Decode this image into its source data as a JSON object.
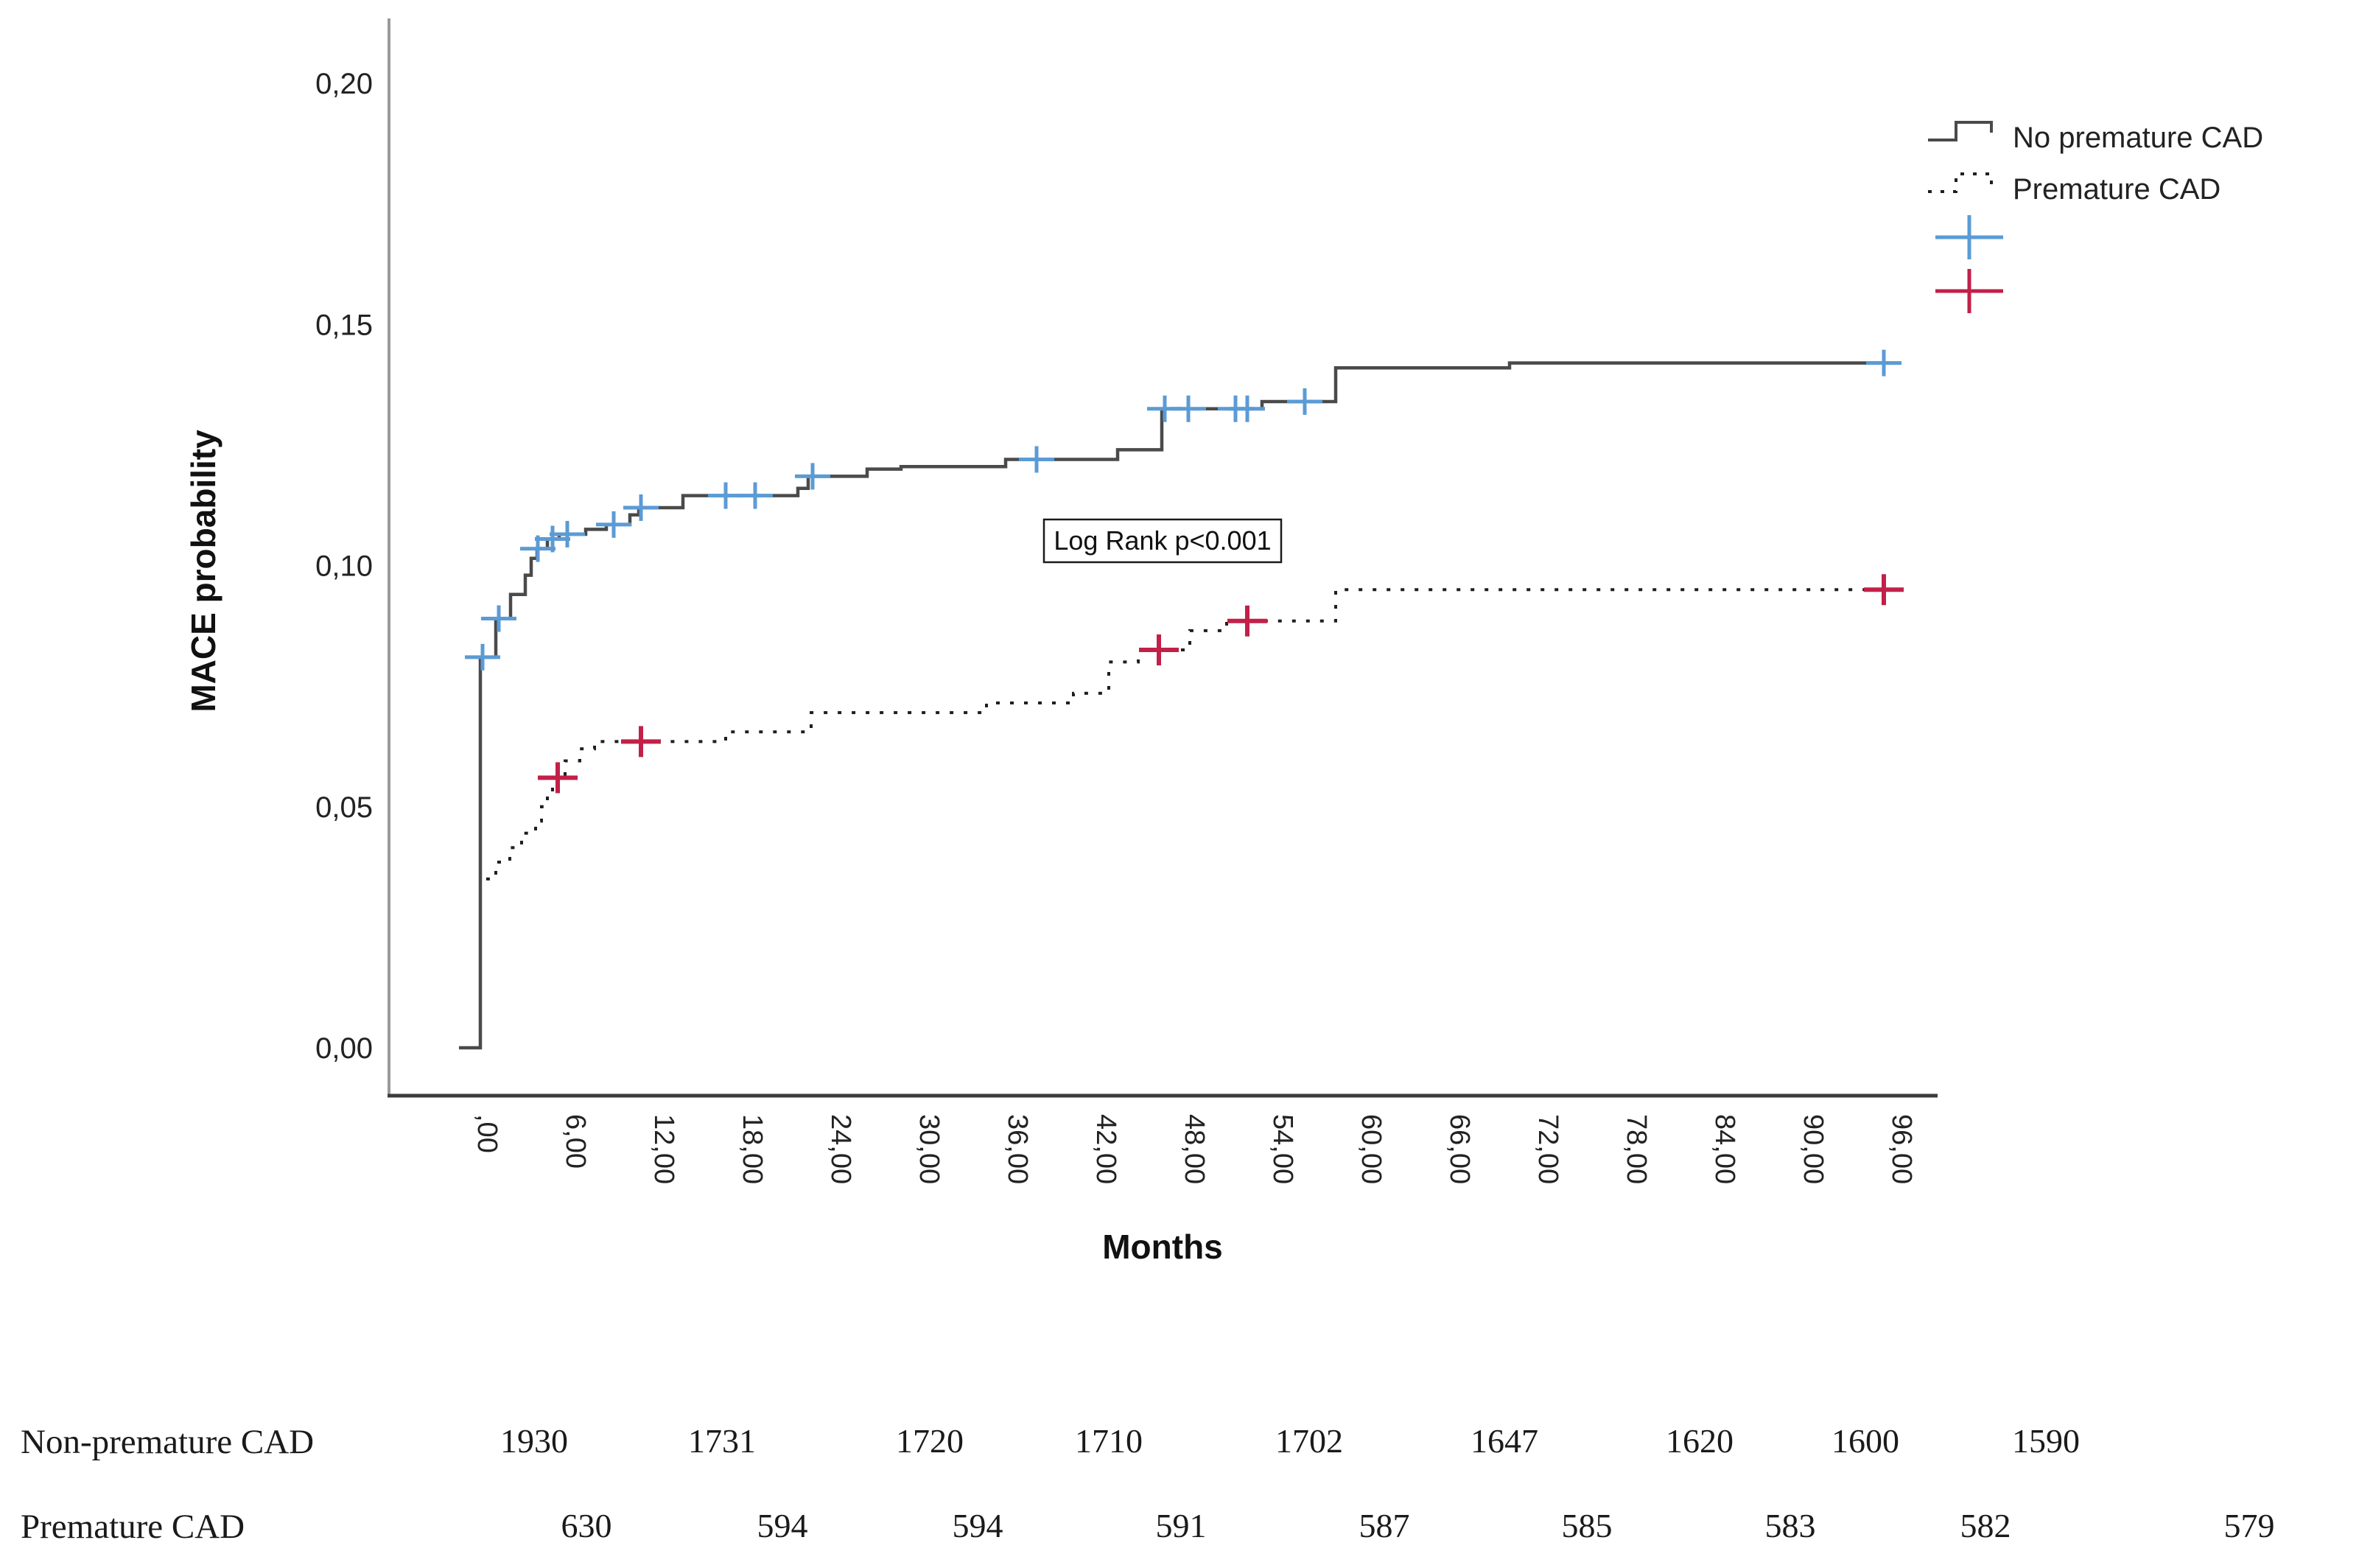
{
  "chart_data": {
    "type": "line",
    "subtype": "kaplan-meier-step",
    "title": "",
    "xlabel": "Months",
    "ylabel": "MACE probability",
    "annotation": "Log Rank p<0.001",
    "xlim": [
      -5,
      100
    ],
    "ylim": [
      0.0,
      0.21
    ],
    "grid": false,
    "legend_position": "top-right",
    "xtick_labels": [
      ",00",
      "6,00",
      "12,00",
      "18,00",
      "24,00",
      "30,00",
      "36,00",
      "42,00",
      "48,00",
      "54,00",
      "60,00",
      "66,00",
      "72,00",
      "78,00",
      "84,00",
      "90,00",
      "96,00"
    ],
    "xtick_months": [
      0,
      6,
      12,
      18,
      24,
      30,
      36,
      42,
      48,
      54,
      60,
      66,
      72,
      78,
      84,
      90,
      96
    ],
    "ytick_labels": [
      "0,00",
      "0,05",
      "0,10",
      "0,15",
      "0,20"
    ],
    "ytick_values": [
      0.0,
      0.05,
      0.1,
      0.15,
      0.2
    ],
    "colors": {
      "solid_line": "#4a4a4a",
      "dashed_line": "#1f1f1f",
      "censor_blue": "#5b9bd5",
      "censor_red": "#c22049",
      "axis_left": "#9a9a9a",
      "axis_bottom": "#3c3c3c"
    },
    "series": [
      {
        "name": "No premature CAD",
        "style": "solid",
        "start_month": -0.6,
        "end_month": 96.5,
        "steps": [
          [
            0.85,
            0.081
          ],
          [
            1.9,
            0.089
          ],
          [
            2.9,
            0.094
          ],
          [
            3.9,
            0.098
          ],
          [
            4.3,
            0.1015
          ],
          [
            4.7,
            0.1035
          ],
          [
            5.4,
            0.1055
          ],
          [
            6.2,
            0.1065
          ],
          [
            8.0,
            0.1075
          ],
          [
            9.4,
            0.1085
          ],
          [
            11.0,
            0.1105
          ],
          [
            11.6,
            0.112
          ],
          [
            14.6,
            0.1145
          ],
          [
            22.4,
            0.116
          ],
          [
            23.1,
            0.1185
          ],
          [
            27.1,
            0.12
          ],
          [
            29.4,
            0.1205
          ],
          [
            36.5,
            0.122
          ],
          [
            44.1,
            0.124
          ],
          [
            47.1,
            0.1325
          ],
          [
            53.9,
            0.134
          ],
          [
            58.9,
            0.141
          ],
          [
            70.7,
            0.142
          ]
        ],
        "censors": [
          [
            1.0,
            0.081
          ],
          [
            2.1,
            0.089
          ],
          [
            4.75,
            0.1035
          ],
          [
            5.75,
            0.1055
          ],
          [
            6.75,
            0.1065
          ],
          [
            9.9,
            0.1085
          ],
          [
            11.75,
            0.112
          ],
          [
            17.5,
            0.1145
          ],
          [
            19.5,
            0.1145
          ],
          [
            23.4,
            0.1185
          ],
          [
            38.6,
            0.122
          ],
          [
            47.3,
            0.1325
          ],
          [
            48.9,
            0.1325
          ],
          [
            52.1,
            0.1325
          ],
          [
            52.9,
            0.1325
          ],
          [
            56.8,
            0.134
          ],
          [
            96.1,
            0.142
          ]
        ]
      },
      {
        "name": "Premature CAD",
        "style": "dashed",
        "start_month": -0.6,
        "end_month": 96.2,
        "steps": [
          [
            0.85,
            0.035
          ],
          [
            1.9,
            0.0385
          ],
          [
            2.85,
            0.0415
          ],
          [
            3.65,
            0.0445
          ],
          [
            4.6,
            0.047
          ],
          [
            5.0,
            0.05
          ],
          [
            5.4,
            0.0525
          ],
          [
            5.75,
            0.056
          ],
          [
            6.6,
            0.0595
          ],
          [
            7.6,
            0.062
          ],
          [
            8.6,
            0.0635
          ],
          [
            17.5,
            0.0655
          ],
          [
            23.3,
            0.0695
          ],
          [
            35.2,
            0.0715
          ],
          [
            41.1,
            0.0735
          ],
          [
            43.5,
            0.08
          ],
          [
            45.5,
            0.0825
          ],
          [
            49.0,
            0.0865
          ],
          [
            51.5,
            0.0885
          ],
          [
            58.9,
            0.095
          ]
        ],
        "censors": [
          [
            6.1,
            0.056
          ],
          [
            11.75,
            0.0635
          ],
          [
            46.9,
            0.0825
          ],
          [
            52.9,
            0.0885
          ],
          [
            96.1,
            0.095
          ]
        ]
      }
    ]
  },
  "legend": {
    "items": [
      {
        "label": "No premature CAD",
        "marker": "solid-step-line"
      },
      {
        "label": "Premature CAD",
        "marker": "dashed-step-line"
      },
      {
        "label": "",
        "marker": "blue-censor-cross"
      },
      {
        "label": "",
        "marker": "red-censor-cross"
      }
    ]
  },
  "annotation_box": {
    "text": "Log Rank p<0.001"
  },
  "risk_table": {
    "rows": [
      {
        "label": "Non-premature CAD",
        "values": [
          "1930",
          "1731",
          "1720",
          "1710",
          "1702",
          "1647",
          "1620",
          "1600",
          "1590"
        ],
        "x_centers": [
          725,
          980,
          1262,
          1505,
          1777,
          2042,
          2307,
          2532,
          2777
        ],
        "y_center": 1957
      },
      {
        "label": "Premature CAD",
        "values": [
          "630",
          "594",
          "594",
          "591",
          "587",
          "585",
          "583",
          "582",
          "579"
        ],
        "x_centers": [
          796,
          1062,
          1327,
          1603,
          1879,
          2154,
          2430,
          2695,
          3053
        ],
        "y_center": 2072
      }
    ]
  }
}
